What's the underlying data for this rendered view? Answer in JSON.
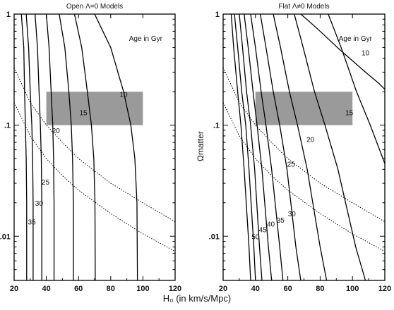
{
  "figure": {
    "xlabel": "H₀ (in km/s/Mpc)",
    "ylabel": "Ωmatter"
  },
  "chart_data": [
    {
      "type": "line",
      "title": "Open Λ=0 Models",
      "annotation": "Age in Gyr",
      "xlabel": "H₀ (in km/s/Mpc)",
      "ylabel": "",
      "x_ticks": [
        20,
        40,
        60,
        80,
        100,
        120
      ],
      "x_tick_labels": [
        "20",
        "40",
        "60",
        "80",
        "100",
        "120"
      ],
      "y_ticks": [
        0.01,
        0.1,
        1
      ],
      "y_tick_labels": [
        ".01",
        ".1",
        "1"
      ],
      "xlim": [
        20,
        120
      ],
      "ylim": [
        0.004,
        1
      ],
      "yscale": "log",
      "shaded_region": {
        "x": [
          40,
          100
        ],
        "y": [
          0.1,
          0.2
        ],
        "color": "#9a9a9a"
      },
      "series": [
        {
          "age_label": "",
          "style": "solid",
          "x": [
            24.5,
            26,
            26.5,
            27,
            27.5,
            27.8,
            27.8
          ],
          "y": [
            1,
            0.5,
            0.2,
            0.1,
            0.05,
            0.02,
            0.004
          ]
        },
        {
          "age_label": "35",
          "style": "solid",
          "x": [
            27.5,
            29,
            30,
            31,
            31.5,
            31.8,
            31.8
          ],
          "y": [
            1,
            0.5,
            0.2,
            0.1,
            0.05,
            0.02,
            0.004
          ]
        },
        {
          "age_label": "30",
          "style": "solid",
          "x": [
            33,
            34.5,
            35.5,
            36.3,
            36.9,
            37.2,
            37.2
          ],
          "y": [
            1,
            0.5,
            0.2,
            0.1,
            0.05,
            0.02,
            0.004
          ]
        },
        {
          "age_label": "25",
          "style": "solid",
          "x": [
            40,
            41.7,
            43,
            44,
            44.5,
            44.8,
            44.8
          ],
          "y": [
            1,
            0.5,
            0.2,
            0.1,
            0.05,
            0.02,
            0.004
          ]
        },
        {
          "age_label": "20",
          "style": "solid",
          "x": [
            48,
            51.5,
            54,
            55.5,
            56.3,
            56.8,
            56.8
          ],
          "y": [
            1,
            0.5,
            0.2,
            0.1,
            0.05,
            0.02,
            0.004
          ]
        },
        {
          "age_label": "15",
          "style": "solid",
          "x": [
            57.5,
            62,
            65.5,
            68,
            69.5,
            70.2,
            70.4
          ],
          "y": [
            1,
            0.5,
            0.2,
            0.1,
            0.05,
            0.02,
            0.004
          ]
        },
        {
          "age_label": "10",
          "style": "solid",
          "x": [
            70,
            80,
            88,
            92.5,
            95,
            96.3,
            96.6
          ],
          "y": [
            1,
            0.5,
            0.2,
            0.1,
            0.05,
            0.02,
            0.004
          ]
        },
        {
          "age_label": "",
          "style": "dotted",
          "x": [
            20,
            30,
            40,
            50,
            60,
            80,
            100,
            120
          ],
          "y": [
            0.33,
            0.16,
            0.1,
            0.07,
            0.05,
            0.03,
            0.02,
            0.0135
          ]
        },
        {
          "age_label": "",
          "style": "dotted",
          "x": [
            20,
            30,
            40,
            50,
            60,
            80,
            100,
            120
          ],
          "y": [
            0.16,
            0.08,
            0.05,
            0.035,
            0.026,
            0.016,
            0.0105,
            0.0073
          ]
        }
      ],
      "age_label_positions": [
        {
          "label": "10",
          "x": 88,
          "y": 0.19
        },
        {
          "label": "15",
          "x": 63,
          "y": 0.13
        },
        {
          "label": "20",
          "x": 46,
          "y": 0.09
        },
        {
          "label": "25",
          "x": 39.5,
          "y": 0.031
        },
        {
          "label": "30",
          "x": 35.5,
          "y": 0.02
        },
        {
          "label": "35",
          "x": 31,
          "y": 0.0135
        }
      ]
    },
    {
      "type": "line",
      "title": "Flat Λ≠0 Models",
      "annotation": "Age in Gyr",
      "xlabel": "H₀ (in km/s/Mpc)",
      "ylabel": "Ωmatter",
      "x_ticks": [
        20,
        40,
        60,
        80,
        100,
        120
      ],
      "x_tick_labels": [
        "20",
        "40",
        "60",
        "80",
        "100",
        "120"
      ],
      "y_ticks": [
        0.01,
        0.1,
        1
      ],
      "y_tick_labels": [
        ".01",
        ".1",
        "1"
      ],
      "xlim": [
        20,
        120
      ],
      "ylim": [
        0.004,
        1
      ],
      "yscale": "log",
      "shaded_region": {
        "x": [
          40,
          100
        ],
        "y": [
          0.1,
          0.2
        ],
        "color": "#9a9a9a"
      },
      "series": [
        {
          "age_label": "",
          "style": "solid",
          "x": [
            25,
            26.5,
            29,
            31,
            33,
            36,
            37
          ],
          "y": [
            1,
            0.5,
            0.2,
            0.1,
            0.04,
            0.008,
            0.004
          ]
        },
        {
          "age_label": "50",
          "style": "solid",
          "x": [
            27,
            29,
            31.5,
            34,
            36,
            39,
            40
          ],
          "y": [
            1,
            0.5,
            0.2,
            0.1,
            0.04,
            0.008,
            0.004
          ]
        },
        {
          "age_label": "45",
          "style": "solid",
          "x": [
            30,
            32,
            34.5,
            37,
            39.5,
            42.5,
            44
          ],
          "y": [
            1,
            0.5,
            0.2,
            0.1,
            0.04,
            0.008,
            0.004
          ]
        },
        {
          "age_label": "40",
          "style": "solid",
          "x": [
            33,
            35.5,
            38.5,
            41,
            44,
            48,
            50
          ],
          "y": [
            1,
            0.5,
            0.2,
            0.1,
            0.04,
            0.008,
            0.004
          ]
        },
        {
          "age_label": "35",
          "style": "solid",
          "x": [
            37,
            40,
            43.5,
            46.5,
            50,
            55,
            57
          ],
          "y": [
            1,
            0.5,
            0.2,
            0.1,
            0.04,
            0.008,
            0.004
          ]
        },
        {
          "age_label": "30",
          "style": "solid",
          "x": [
            43,
            46.5,
            51,
            55,
            59.5,
            65,
            68
          ],
          "y": [
            1,
            0.5,
            0.2,
            0.1,
            0.04,
            0.008,
            0.004
          ]
        },
        {
          "age_label": "25",
          "style": "solid",
          "x": [
            51,
            55.5,
            61,
            66,
            72,
            80,
            84
          ],
          "y": [
            1,
            0.5,
            0.2,
            0.1,
            0.04,
            0.008,
            0.004
          ]
        },
        {
          "age_label": "20",
          "style": "solid",
          "x": [
            64,
            69.5,
            76.5,
            83,
            91,
            102,
            108
          ],
          "y": [
            1,
            0.5,
            0.2,
            0.1,
            0.04,
            0.008,
            0.004
          ]
        },
        {
          "age_label": "15",
          "style": "solid",
          "x": [
            85,
            93,
            102.5,
            111,
            120
          ],
          "y": [
            1,
            0.5,
            0.2,
            0.1,
            0.045
          ]
        },
        {
          "age_label": "10",
          "style": "solid",
          "x": [
            68,
            74,
            80,
            86,
            92,
            100,
            108,
            116,
            120
          ],
          "y": [
            1,
            0.84,
            0.7,
            0.58,
            0.48,
            0.38,
            0.3,
            0.24,
            0.21
          ]
        },
        {
          "age_label": "",
          "style": "dotted",
          "x": [
            20,
            30,
            40,
            50,
            60,
            80,
            100,
            120
          ],
          "y": [
            0.33,
            0.16,
            0.1,
            0.07,
            0.05,
            0.03,
            0.02,
            0.0135
          ]
        },
        {
          "age_label": "",
          "style": "dotted",
          "x": [
            20,
            30,
            40,
            50,
            60,
            80,
            100,
            120
          ],
          "y": [
            0.16,
            0.08,
            0.05,
            0.035,
            0.026,
            0.016,
            0.0105,
            0.0073
          ]
        }
      ],
      "age_label_positions": [
        {
          "label": "10",
          "x": 108,
          "y": 0.45
        },
        {
          "label": "15",
          "x": 98,
          "y": 0.13
        },
        {
          "label": "20",
          "x": 74,
          "y": 0.075
        },
        {
          "label": "25",
          "x": 62,
          "y": 0.045
        },
        {
          "label": "30",
          "x": 62.5,
          "y": 0.016
        },
        {
          "label": "35",
          "x": 55.5,
          "y": 0.014
        },
        {
          "label": "40",
          "x": 49.5,
          "y": 0.013
        },
        {
          "label": "45",
          "x": 44.5,
          "y": 0.0115
        },
        {
          "label": "50",
          "x": 40,
          "y": 0.01
        }
      ]
    }
  ]
}
